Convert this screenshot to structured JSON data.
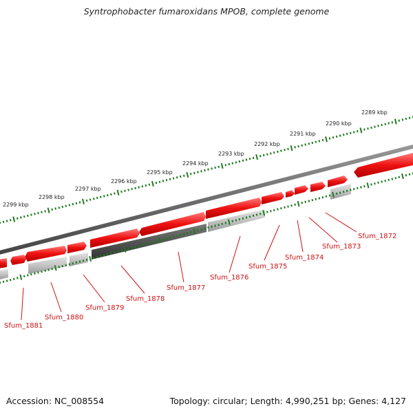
{
  "title": "Syntrophobacter fumaroxidans MPOB, complete genome",
  "footer": {
    "accession": "Accession: NC_008554",
    "summary": "Topology: circular; Length: 4,990,251 bp; Genes: 4,127"
  },
  "ticks": [
    "2289 kbp",
    "2290 kbp",
    "2291 kbp",
    "2292 kbp",
    "2293 kbp",
    "2294 kbp",
    "2295 kbp",
    "2296 kbp",
    "2297 kbp",
    "2298 kbp",
    "2299 kbp"
  ],
  "genes": [
    "Sfum_1872",
    "Sfum_1873",
    "Sfum_1874",
    "Sfum_1875",
    "Sfum_1876",
    "Sfum_1877",
    "Sfum_1878",
    "Sfum_1879",
    "Sfum_1880",
    "Sfum_1881"
  ],
  "colors": {
    "cds_forward": "#ee1111",
    "cds_highlight": "#ff6b6b",
    "grey_light": "#c8c8c8",
    "grey_dark": "#555555",
    "backbone": "#777777",
    "ruler": "#1e7a1e",
    "label": "#cc1111"
  }
}
